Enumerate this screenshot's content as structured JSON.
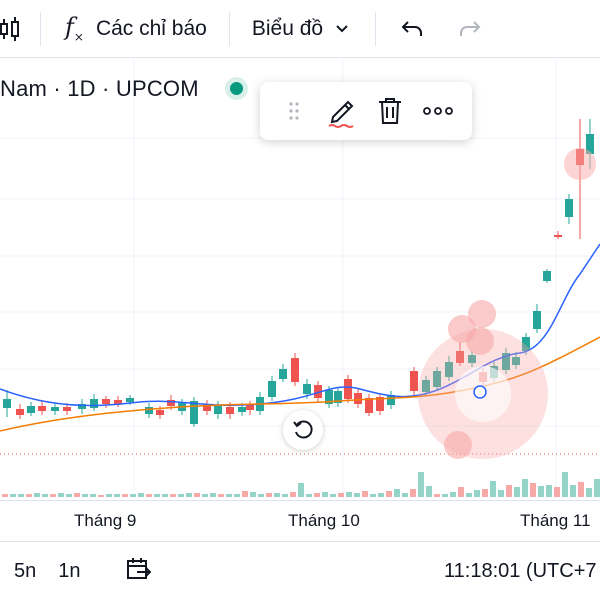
{
  "toolbar": {
    "indicators_label": "Các chỉ báo",
    "chart_type_label": "Biểu đồ"
  },
  "header": {
    "symbol": "Nam · 1D · UPCOM"
  },
  "x_axis": {
    "labels": [
      "Tháng 9",
      "Tháng 10",
      "Tháng 11"
    ]
  },
  "bottom_bar": {
    "range_5y": "5n",
    "range_1y": "1n",
    "clock": "11:18:01 (UTC+7"
  },
  "colors": {
    "up": "#26a69a",
    "down": "#ef5350",
    "ma_fast": "#2962ff",
    "ma_slow": "#f57c00",
    "accent": "#089981"
  },
  "icons": {
    "candle": "candles-icon",
    "fx": "fx-icon",
    "undo": "undo-icon",
    "redo": "redo-icon",
    "pencil": "pencil-icon",
    "trash": "trash-icon",
    "more": "more-icon",
    "compare": "date-range-icon",
    "reset": "reset-icon"
  }
}
